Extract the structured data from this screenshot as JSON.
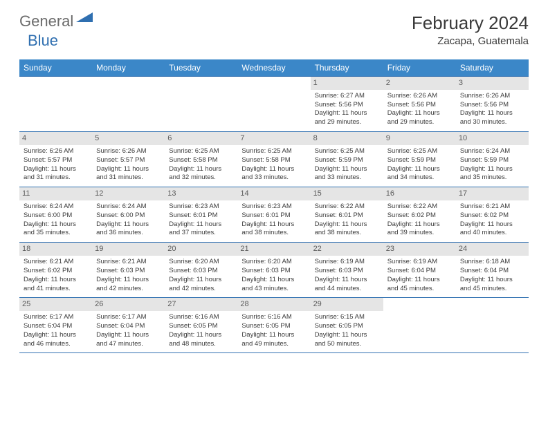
{
  "logo": {
    "text1": "General",
    "text2": "Blue"
  },
  "title": {
    "month": "February 2024",
    "location": "Zacapa, Guatemala"
  },
  "colors": {
    "header_bg": "#3b87c8",
    "header_fg": "#ffffff",
    "rule": "#2f6fb0",
    "daynum_bg": "#e5e5e5",
    "text": "#3a3a3a",
    "logo_gray": "#6b6b6b",
    "logo_blue": "#2f6fb0"
  },
  "weekdays": [
    "Sunday",
    "Monday",
    "Tuesday",
    "Wednesday",
    "Thursday",
    "Friday",
    "Saturday"
  ],
  "weeks": [
    [
      null,
      null,
      null,
      null,
      {
        "n": "1",
        "sr": "6:27 AM",
        "ss": "5:56 PM",
        "dl": "11 hours and 29 minutes."
      },
      {
        "n": "2",
        "sr": "6:26 AM",
        "ss": "5:56 PM",
        "dl": "11 hours and 29 minutes."
      },
      {
        "n": "3",
        "sr": "6:26 AM",
        "ss": "5:56 PM",
        "dl": "11 hours and 30 minutes."
      }
    ],
    [
      {
        "n": "4",
        "sr": "6:26 AM",
        "ss": "5:57 PM",
        "dl": "11 hours and 31 minutes."
      },
      {
        "n": "5",
        "sr": "6:26 AM",
        "ss": "5:57 PM",
        "dl": "11 hours and 31 minutes."
      },
      {
        "n": "6",
        "sr": "6:25 AM",
        "ss": "5:58 PM",
        "dl": "11 hours and 32 minutes."
      },
      {
        "n": "7",
        "sr": "6:25 AM",
        "ss": "5:58 PM",
        "dl": "11 hours and 33 minutes."
      },
      {
        "n": "8",
        "sr": "6:25 AM",
        "ss": "5:59 PM",
        "dl": "11 hours and 33 minutes."
      },
      {
        "n": "9",
        "sr": "6:25 AM",
        "ss": "5:59 PM",
        "dl": "11 hours and 34 minutes."
      },
      {
        "n": "10",
        "sr": "6:24 AM",
        "ss": "5:59 PM",
        "dl": "11 hours and 35 minutes."
      }
    ],
    [
      {
        "n": "11",
        "sr": "6:24 AM",
        "ss": "6:00 PM",
        "dl": "11 hours and 35 minutes."
      },
      {
        "n": "12",
        "sr": "6:24 AM",
        "ss": "6:00 PM",
        "dl": "11 hours and 36 minutes."
      },
      {
        "n": "13",
        "sr": "6:23 AM",
        "ss": "6:01 PM",
        "dl": "11 hours and 37 minutes."
      },
      {
        "n": "14",
        "sr": "6:23 AM",
        "ss": "6:01 PM",
        "dl": "11 hours and 38 minutes."
      },
      {
        "n": "15",
        "sr": "6:22 AM",
        "ss": "6:01 PM",
        "dl": "11 hours and 38 minutes."
      },
      {
        "n": "16",
        "sr": "6:22 AM",
        "ss": "6:02 PM",
        "dl": "11 hours and 39 minutes."
      },
      {
        "n": "17",
        "sr": "6:21 AM",
        "ss": "6:02 PM",
        "dl": "11 hours and 40 minutes."
      }
    ],
    [
      {
        "n": "18",
        "sr": "6:21 AM",
        "ss": "6:02 PM",
        "dl": "11 hours and 41 minutes."
      },
      {
        "n": "19",
        "sr": "6:21 AM",
        "ss": "6:03 PM",
        "dl": "11 hours and 42 minutes."
      },
      {
        "n": "20",
        "sr": "6:20 AM",
        "ss": "6:03 PM",
        "dl": "11 hours and 42 minutes."
      },
      {
        "n": "21",
        "sr": "6:20 AM",
        "ss": "6:03 PM",
        "dl": "11 hours and 43 minutes."
      },
      {
        "n": "22",
        "sr": "6:19 AM",
        "ss": "6:03 PM",
        "dl": "11 hours and 44 minutes."
      },
      {
        "n": "23",
        "sr": "6:19 AM",
        "ss": "6:04 PM",
        "dl": "11 hours and 45 minutes."
      },
      {
        "n": "24",
        "sr": "6:18 AM",
        "ss": "6:04 PM",
        "dl": "11 hours and 45 minutes."
      }
    ],
    [
      {
        "n": "25",
        "sr": "6:17 AM",
        "ss": "6:04 PM",
        "dl": "11 hours and 46 minutes."
      },
      {
        "n": "26",
        "sr": "6:17 AM",
        "ss": "6:04 PM",
        "dl": "11 hours and 47 minutes."
      },
      {
        "n": "27",
        "sr": "6:16 AM",
        "ss": "6:05 PM",
        "dl": "11 hours and 48 minutes."
      },
      {
        "n": "28",
        "sr": "6:16 AM",
        "ss": "6:05 PM",
        "dl": "11 hours and 49 minutes."
      },
      {
        "n": "29",
        "sr": "6:15 AM",
        "ss": "6:05 PM",
        "dl": "11 hours and 50 minutes."
      },
      null,
      null
    ]
  ],
  "labels": {
    "sunrise": "Sunrise:",
    "sunset": "Sunset:",
    "daylight": "Daylight:"
  }
}
